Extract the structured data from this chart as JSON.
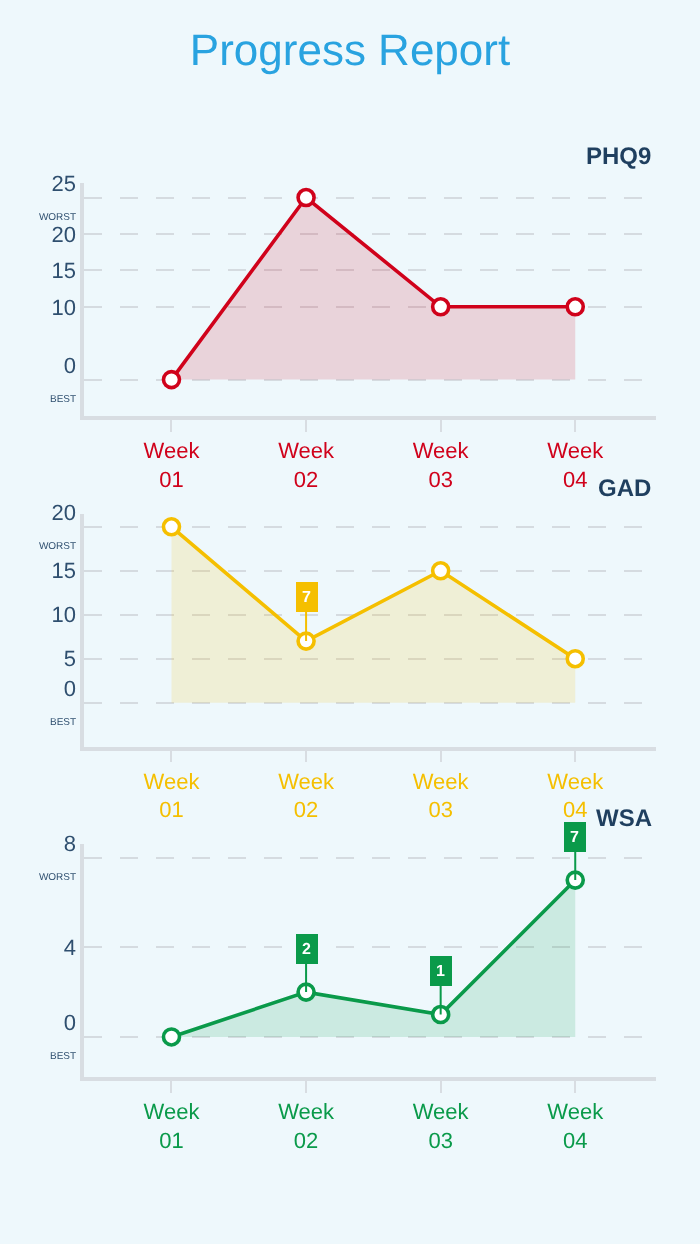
{
  "chart_data": [
    {
      "type": "area",
      "title": "Progress Report",
      "subtitle": "PHQ9",
      "categories": [
        "Week\n01",
        "Week\n02",
        "Week\n03",
        "Week\n04"
      ],
      "series": [
        {
          "color": "#d0021b",
          "values": [
            0,
            25,
            10,
            10
          ]
        }
      ],
      "ylim": [
        -5,
        27
      ],
      "yticks": [
        {
          "value": 0,
          "label": "0\nBEST"
        },
        10,
        15,
        20,
        {
          "value": 25,
          "label": "25\nWORST"
        }
      ],
      "grid": "y",
      "marker": "circle",
      "line_style": "solid"
    },
    {
      "type": "area",
      "subtitle": "GAD",
      "categories": [
        "Week\n01",
        "Week\n02",
        "Week\n03",
        "Week\n04"
      ],
      "series": [
        {
          "color": "#f5bf00",
          "values": [
            20,
            7,
            15,
            5
          ],
          "value_labels": [
            null,
            "7",
            null,
            null
          ]
        }
      ],
      "ylim": [
        -5,
        21.5
      ],
      "yticks": [
        {
          "value": 0,
          "label": "0\nBEST"
        },
        5,
        10,
        15,
        {
          "value": 20,
          "label": "20\nWORST"
        }
      ],
      "grid": "y",
      "marker": "circle",
      "line_style": "solid"
    },
    {
      "type": "area",
      "subtitle": "WSA",
      "categories": [
        "Week\n01",
        "Week\n02",
        "Week\n03",
        "Week\n04"
      ],
      "series": [
        {
          "color": "#0a9a4a",
          "values": [
            0,
            2,
            1,
            7
          ],
          "value_labels": [
            null,
            "2",
            "1",
            "7"
          ]
        }
      ],
      "ylim": [
        -1.8,
        8.6
      ],
      "yticks": [
        {
          "value": 0,
          "label": "0\nBEST"
        },
        4,
        {
          "value": 8,
          "label": "8\nWORST"
        }
      ],
      "grid": "y",
      "marker": "circle",
      "line_style": "solid"
    }
  ]
}
